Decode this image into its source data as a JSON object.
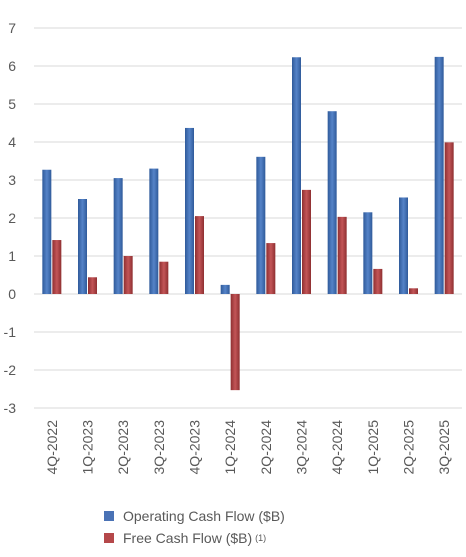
{
  "chart_data": {
    "type": "bar",
    "categories": [
      "4Q-2022",
      "1Q-2023",
      "2Q-2023",
      "3Q-2023",
      "4Q-2023",
      "1Q-2024",
      "2Q-2024",
      "3Q-2024",
      "4Q-2024",
      "1Q-2025",
      "2Q-2025",
      "3Q-2025"
    ],
    "series": [
      {
        "name": "Operating Cash Flow ($B)",
        "color": "#4a72b5",
        "values": [
          3.27,
          2.5,
          3.05,
          3.3,
          4.37,
          0.24,
          3.61,
          6.23,
          4.81,
          2.15,
          2.54,
          6.24
        ]
      },
      {
        "name": "Free Cash Flow ($B)",
        "superscript": "(1)",
        "color": "#b5484a",
        "values": [
          1.42,
          0.44,
          1.0,
          0.85,
          2.05,
          -2.53,
          1.34,
          2.74,
          2.03,
          0.66,
          0.15,
          3.99
        ]
      }
    ],
    "ylim": [
      -3,
      7
    ],
    "yticks": [
      -3,
      -2,
      -1,
      0,
      1,
      2,
      3,
      4,
      5,
      6,
      7
    ],
    "grid": true,
    "legend": "bottom",
    "title": "",
    "xlabel": "",
    "ylabel": ""
  }
}
